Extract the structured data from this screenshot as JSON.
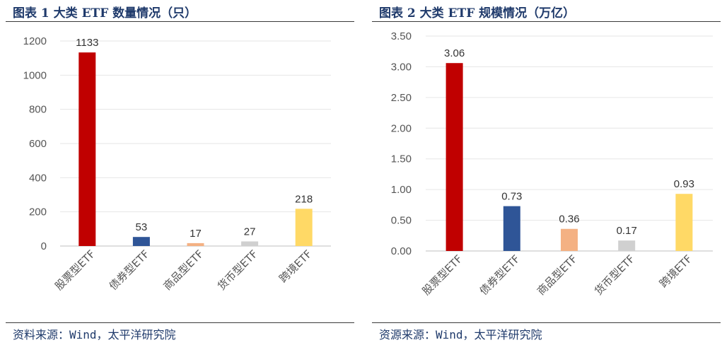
{
  "charts": [
    {
      "title": "图表 1 大类 ETF 数量情况（只）",
      "source": "资料来源：Wind，太平洋研究院",
      "chart_data": {
        "type": "bar",
        "categories": [
          "股票型ETF",
          "债券型ETF",
          "商品型ETF",
          "货币型ETF",
          "跨境ETF"
        ],
        "values": [
          1133,
          53,
          17,
          27,
          218
        ],
        "value_labels": [
          "1133",
          "53",
          "17",
          "27",
          "218"
        ],
        "colors": [
          "#c00000",
          "#2f5597",
          "#f4b183",
          "#d0d0d0",
          "#ffd966"
        ],
        "ylim": [
          0,
          1200
        ],
        "yticks": [
          0,
          200,
          400,
          600,
          800,
          1000,
          1200
        ],
        "ytick_labels": [
          "0",
          "200",
          "400",
          "600",
          "800",
          "1000",
          "1200"
        ],
        "grid": true
      }
    },
    {
      "title": "图表 2 大类 ETF 规模情况（万亿）",
      "source": "资源来源：Wind，太平洋研究院",
      "chart_data": {
        "type": "bar",
        "categories": [
          "股票型ETF",
          "债券型ETF",
          "商品型ETF",
          "货币型ETF",
          "跨境ETF"
        ],
        "values": [
          3.06,
          0.73,
          0.36,
          0.17,
          0.93
        ],
        "value_labels": [
          "3.06",
          "0.73",
          "0.36",
          "0.17",
          "0.93"
        ],
        "colors": [
          "#c00000",
          "#2f5597",
          "#f4b183",
          "#d0d0d0",
          "#ffd966"
        ],
        "ylim": [
          0,
          3.5
        ],
        "yticks": [
          0,
          0.5,
          1.0,
          1.5,
          2.0,
          2.5,
          3.0,
          3.5
        ],
        "ytick_labels": [
          "0.00",
          "0.50",
          "1.00",
          "1.50",
          "2.00",
          "2.50",
          "3.00",
          "3.50"
        ],
        "grid": true
      }
    }
  ]
}
